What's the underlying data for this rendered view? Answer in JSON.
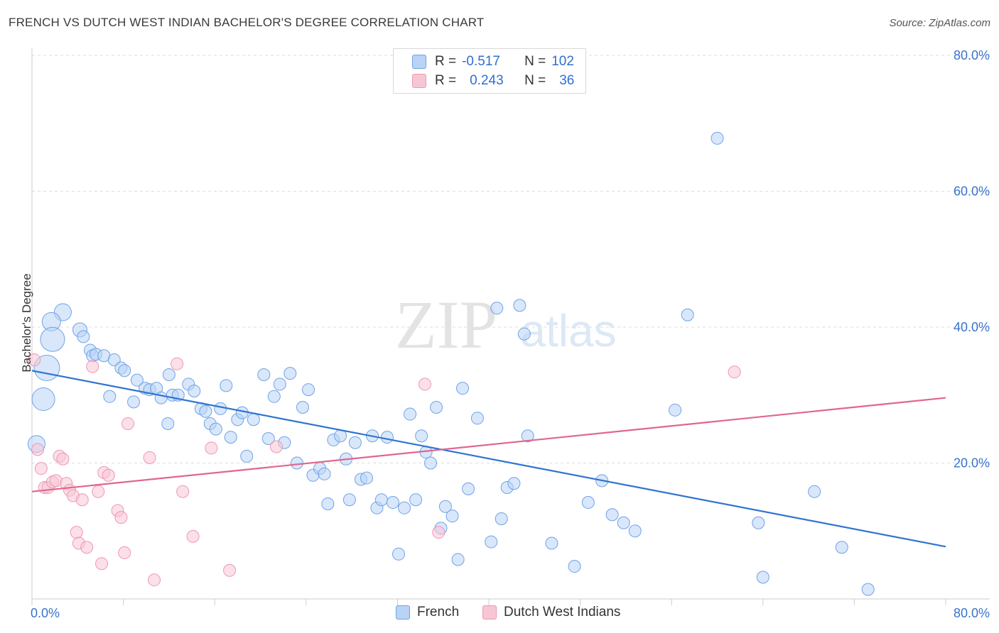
{
  "title": "FRENCH VS DUTCH WEST INDIAN BACHELOR'S DEGREE CORRELATION CHART",
  "source": "Source: ZipAtlas.com",
  "colors": {
    "french": "#6fa3e6",
    "french_fill": "#b9d3f5",
    "french_line": "#2f74d0",
    "dutch": "#ef97b2",
    "dutch_fill": "#f7c6d5",
    "dutch_line": "#e0668f",
    "axis_text": "#3a73cc",
    "grid": "#dddddd"
  },
  "legend": {
    "rows": [
      {
        "r_label": "R =",
        "r_value": "-0.517",
        "n_label": "N =",
        "n_value": "102"
      },
      {
        "r_label": "R =",
        "r_value": "0.243",
        "n_label": "N =",
        "n_value": "36"
      }
    ]
  },
  "bottom_legend": {
    "french": "French",
    "dutch": "Dutch West Indians"
  },
  "watermark": {
    "zip": "ZIP",
    "atlas": "atlas"
  },
  "chart_data": {
    "type": "scatter",
    "title": "FRENCH VS DUTCH WEST INDIAN BACHELOR'S DEGREE CORRELATION CHART",
    "xlabel": "",
    "ylabel": "Bachelor's Degree",
    "xlim": [
      0,
      80
    ],
    "ylim": [
      0,
      80
    ],
    "x_ticks": [
      "0.0%",
      "80.0%"
    ],
    "y_ticks": [
      "20.0%",
      "40.0%",
      "60.0%",
      "80.0%"
    ],
    "y_tick_values": [
      20,
      40,
      60,
      80
    ],
    "grid": true,
    "legend_position": "top-center",
    "series": [
      {
        "name": "French",
        "R": -0.517,
        "N": 102,
        "trend": {
          "x": [
            0,
            80
          ],
          "y": [
            33.6,
            7.7
          ]
        },
        "points": [
          [
            2.7,
            42.2
          ],
          [
            1.7,
            40.8
          ],
          [
            1.8,
            38.2
          ],
          [
            4.2,
            39.6
          ],
          [
            4.5,
            38.6
          ],
          [
            1.3,
            34.0
          ],
          [
            5.1,
            36.6
          ],
          [
            5.3,
            35.8
          ],
          [
            5.6,
            36.0
          ],
          [
            6.3,
            35.8
          ],
          [
            7.2,
            35.2
          ],
          [
            7.8,
            34.0
          ],
          [
            8.1,
            33.6
          ],
          [
            9.2,
            32.2
          ],
          [
            9.9,
            31.0
          ],
          [
            10.3,
            30.8
          ],
          [
            10.9,
            31.0
          ],
          [
            11.3,
            29.6
          ],
          [
            12.0,
            33.0
          ],
          [
            12.3,
            30.0
          ],
          [
            12.8,
            30.0
          ],
          [
            13.7,
            31.6
          ],
          [
            14.2,
            30.6
          ],
          [
            14.8,
            28.0
          ],
          [
            15.2,
            27.6
          ],
          [
            15.6,
            25.8
          ],
          [
            16.1,
            25.0
          ],
          [
            16.5,
            28.0
          ],
          [
            17.0,
            31.4
          ],
          [
            17.4,
            23.8
          ],
          [
            18.0,
            26.4
          ],
          [
            18.4,
            27.4
          ],
          [
            18.8,
            21.0
          ],
          [
            19.4,
            26.4
          ],
          [
            20.3,
            33.0
          ],
          [
            20.7,
            23.6
          ],
          [
            21.2,
            29.8
          ],
          [
            21.7,
            31.6
          ],
          [
            22.1,
            23.0
          ],
          [
            22.6,
            33.2
          ],
          [
            23.2,
            20.0
          ],
          [
            23.7,
            28.2
          ],
          [
            24.2,
            30.8
          ],
          [
            24.6,
            18.2
          ],
          [
            25.2,
            19.2
          ],
          [
            25.6,
            18.4
          ],
          [
            25.9,
            14.0
          ],
          [
            26.4,
            23.4
          ],
          [
            27.0,
            24.0
          ],
          [
            27.5,
            20.6
          ],
          [
            27.8,
            14.6
          ],
          [
            28.3,
            23.0
          ],
          [
            28.8,
            17.6
          ],
          [
            29.3,
            17.8
          ],
          [
            29.8,
            24.0
          ],
          [
            30.2,
            13.4
          ],
          [
            30.6,
            14.6
          ],
          [
            31.1,
            23.8
          ],
          [
            31.6,
            14.2
          ],
          [
            32.1,
            6.6
          ],
          [
            32.6,
            13.4
          ],
          [
            33.1,
            27.2
          ],
          [
            33.6,
            14.6
          ],
          [
            34.1,
            24.0
          ],
          [
            34.5,
            21.6
          ],
          [
            34.9,
            20.0
          ],
          [
            35.4,
            28.2
          ],
          [
            35.8,
            10.4
          ],
          [
            36.2,
            13.6
          ],
          [
            36.8,
            12.2
          ],
          [
            37.3,
            5.8
          ],
          [
            37.7,
            31.0
          ],
          [
            38.2,
            16.2
          ],
          [
            39.0,
            26.6
          ],
          [
            40.2,
            8.4
          ],
          [
            40.7,
            42.8
          ],
          [
            41.1,
            11.8
          ],
          [
            41.6,
            16.4
          ],
          [
            42.2,
            17.0
          ],
          [
            42.7,
            43.2
          ],
          [
            43.1,
            39.0
          ],
          [
            43.4,
            24.0
          ],
          [
            45.5,
            8.2
          ],
          [
            47.5,
            4.8
          ],
          [
            48.7,
            14.2
          ],
          [
            49.9,
            17.4
          ],
          [
            50.8,
            12.4
          ],
          [
            51.8,
            11.2
          ],
          [
            52.8,
            10.0
          ],
          [
            56.3,
            27.8
          ],
          [
            57.4,
            41.8
          ],
          [
            60.0,
            67.8
          ],
          [
            63.6,
            11.2
          ],
          [
            64.0,
            3.2
          ],
          [
            68.5,
            15.8
          ],
          [
            70.9,
            7.6
          ],
          [
            73.2,
            1.4
          ],
          [
            0.4,
            22.8
          ],
          [
            1.0,
            29.4
          ],
          [
            6.8,
            29.8
          ],
          [
            8.9,
            29.0
          ],
          [
            11.9,
            25.8
          ]
        ]
      },
      {
        "name": "Dutch West Indians",
        "R": 0.243,
        "N": 36,
        "trend": {
          "x": [
            0,
            80
          ],
          "y": [
            15.8,
            29.6
          ]
        },
        "points": [
          [
            0.2,
            35.2
          ],
          [
            0.5,
            22.0
          ],
          [
            0.8,
            19.2
          ],
          [
            1.1,
            16.4
          ],
          [
            1.4,
            16.4
          ],
          [
            1.8,
            17.2
          ],
          [
            2.1,
            17.4
          ],
          [
            2.4,
            21.0
          ],
          [
            2.7,
            20.6
          ],
          [
            3.0,
            17.0
          ],
          [
            3.3,
            16.0
          ],
          [
            3.6,
            15.2
          ],
          [
            3.9,
            9.8
          ],
          [
            4.1,
            8.2
          ],
          [
            4.4,
            14.6
          ],
          [
            4.8,
            7.6
          ],
          [
            5.3,
            34.2
          ],
          [
            5.8,
            15.8
          ],
          [
            6.1,
            5.2
          ],
          [
            6.3,
            18.6
          ],
          [
            6.7,
            18.2
          ],
          [
            7.5,
            13.0
          ],
          [
            7.8,
            12.0
          ],
          [
            8.1,
            6.8
          ],
          [
            8.4,
            25.8
          ],
          [
            10.3,
            20.8
          ],
          [
            10.7,
            2.8
          ],
          [
            12.7,
            34.6
          ],
          [
            13.2,
            15.8
          ],
          [
            14.1,
            9.2
          ],
          [
            15.7,
            22.2
          ],
          [
            17.3,
            4.2
          ],
          [
            21.4,
            22.4
          ],
          [
            34.4,
            31.6
          ],
          [
            35.6,
            9.8
          ],
          [
            61.5,
            33.4
          ]
        ]
      }
    ]
  }
}
